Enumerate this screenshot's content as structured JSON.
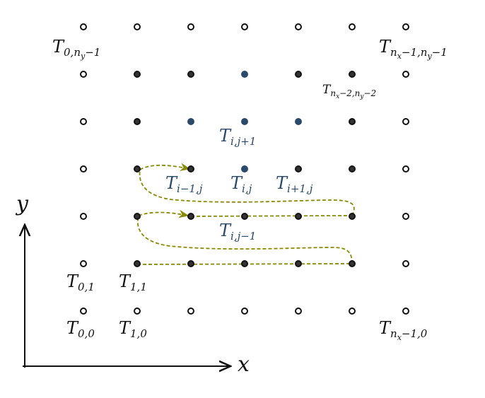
{
  "colors": {
    "boundary_fill": "#ffffff",
    "boundary_stroke": "#111111",
    "interior_fill": "#333333",
    "stencil_fill": "#2b4a6b",
    "path_color": "#8a8a00",
    "axis_color": "#111111"
  },
  "grid": {
    "cols": 7,
    "rows": 7
  },
  "stencil_nodes": [
    [
      3,
      5
    ],
    [
      2,
      4
    ],
    [
      3,
      4
    ],
    [
      4,
      4
    ],
    [
      3,
      3
    ]
  ],
  "axes": {
    "x_label": "x",
    "y_label": "y"
  },
  "labels": {
    "t00": {
      "base": "T",
      "sub": "0,0"
    },
    "t10": {
      "base": "T",
      "sub": "1,0"
    },
    "t01": {
      "base": "T",
      "sub": "0,1"
    },
    "t11": {
      "base": "T",
      "sub": "1,1"
    },
    "t_top_left": {
      "base": "T",
      "sub": "0,n",
      "sub2": "y",
      "sub3": "−1"
    },
    "t_top_right": {
      "base": "T",
      "sub": "n",
      "sub2": "x",
      "sub3": "−1,n",
      "sub4": "y",
      "sub5": "−1"
    },
    "t_near_top_right": {
      "base": "T",
      "sub": "n",
      "sub2": "x",
      "sub3": "−2,n",
      "sub4": "y",
      "sub5": "−2"
    },
    "t_bottom_right": {
      "base": "T",
      "sub": "n",
      "sub2": "x",
      "sub3": "−1,0"
    },
    "t_north": {
      "base": "T",
      "sub": "i,j+1"
    },
    "t_west": {
      "base": "T",
      "sub": "i−1,j"
    },
    "t_center": {
      "base": "T",
      "sub": "i,j"
    },
    "t_east": {
      "base": "T",
      "sub": "i+1,j"
    },
    "t_south": {
      "base": "T",
      "sub": "i,j−1"
    }
  }
}
